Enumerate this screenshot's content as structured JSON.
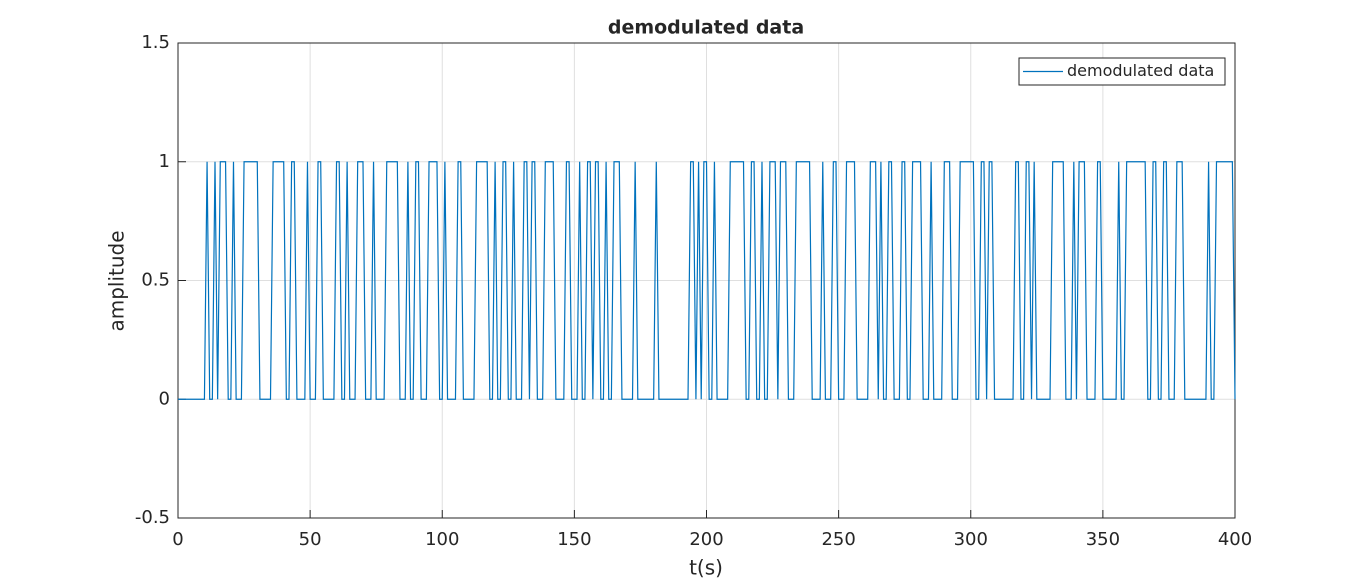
{
  "chart_data": {
    "type": "line",
    "title": "demodulated data",
    "xlabel": "t(s)",
    "ylabel": "amplitude",
    "x": [
      0,
      10,
      11,
      12,
      13,
      14,
      15,
      16,
      18,
      19,
      20,
      21,
      22,
      24,
      25,
      30,
      31,
      35,
      36,
      40,
      41,
      42,
      43,
      44,
      45,
      48,
      49,
      50,
      52,
      53,
      54,
      55,
      59,
      60,
      61,
      62,
      63,
      64,
      65,
      67,
      68,
      70,
      71,
      73,
      74,
      75,
      78,
      79,
      83,
      84,
      86,
      87,
      88,
      89,
      90,
      91,
      92,
      94,
      95,
      98,
      99,
      100,
      101,
      102,
      105,
      106,
      107,
      108,
      112,
      113,
      117,
      118,
      119,
      120,
      121,
      122,
      123,
      124,
      125,
      126,
      127,
      128,
      130,
      131,
      132,
      133,
      134,
      135,
      136,
      138,
      139,
      142,
      143,
      146,
      147,
      148,
      149,
      151,
      152,
      153,
      154,
      155,
      156,
      157,
      158,
      159,
      160,
      161,
      162,
      163,
      164,
      165,
      167,
      168,
      172,
      173,
      174,
      180,
      181,
      182,
      193,
      194,
      195,
      196,
      197,
      198,
      199,
      200,
      201,
      202,
      203,
      204,
      208,
      209,
      214,
      215,
      216,
      217,
      218,
      219,
      220,
      221,
      222,
      223,
      224,
      226,
      227,
      228,
      230,
      231,
      233,
      234,
      239,
      240,
      243,
      244,
      245,
      247,
      248,
      249,
      250,
      252,
      253,
      256,
      257,
      261,
      262,
      264,
      265,
      266,
      267,
      268,
      269,
      270,
      271,
      273,
      274,
      275,
      276,
      277,
      278,
      281,
      282,
      284,
      285,
      286,
      289,
      290,
      292,
      293,
      295,
      296,
      301,
      302,
      303,
      304,
      305,
      306,
      307,
      308,
      309,
      316,
      317,
      318,
      319,
      320,
      321,
      322,
      323,
      324,
      325,
      330,
      331,
      335,
      336,
      338,
      339,
      340,
      341,
      343,
      344,
      347,
      348,
      349,
      350,
      355,
      356,
      357,
      358,
      359,
      366,
      367,
      368,
      369,
      370,
      371,
      372,
      373,
      374,
      375,
      377,
      378,
      380,
      381,
      389,
      390,
      391,
      392,
      393,
      399,
      400
    ],
    "series": [
      {
        "name": "demodulated data",
        "color": "#0072bd",
        "values": [
          0,
          0,
          1,
          0,
          0,
          1,
          0,
          1,
          1,
          0,
          0,
          1,
          0,
          0,
          1,
          1,
          0,
          0,
          1,
          1,
          0,
          0,
          1,
          1,
          0,
          0,
          1,
          0,
          0,
          1,
          1,
          0,
          0,
          1,
          1,
          0,
          0,
          1,
          0,
          0,
          1,
          1,
          0,
          0,
          1,
          0,
          0,
          1,
          1,
          0,
          0,
          1,
          0,
          0,
          1,
          1,
          0,
          0,
          1,
          1,
          0,
          0,
          1,
          0,
          0,
          1,
          1,
          0,
          0,
          1,
          1,
          0,
          0,
          1,
          0,
          0,
          1,
          1,
          0,
          0,
          1,
          0,
          0,
          1,
          1,
          0,
          1,
          1,
          0,
          0,
          1,
          1,
          0,
          0,
          1,
          1,
          0,
          0,
          1,
          0,
          0,
          1,
          1,
          0,
          1,
          1,
          0,
          0,
          1,
          0,
          0,
          1,
          1,
          0,
          0,
          1,
          0,
          0,
          1,
          0,
          0,
          1,
          1,
          0,
          1,
          0,
          1,
          1,
          0,
          0,
          1,
          0,
          0,
          1,
          1,
          0,
          0,
          1,
          1,
          0,
          0,
          1,
          0,
          0,
          1,
          1,
          0,
          1,
          1,
          0,
          0,
          1,
          1,
          0,
          0,
          1,
          0,
          0,
          1,
          1,
          0,
          0,
          1,
          1,
          0,
          0,
          1,
          1,
          0,
          1,
          0,
          0,
          1,
          1,
          0,
          0,
          1,
          1,
          0,
          0,
          1,
          1,
          0,
          0,
          1,
          0,
          0,
          1,
          1,
          0,
          0,
          1,
          1,
          0,
          0,
          1,
          1,
          0,
          1,
          1,
          0,
          0,
          1,
          1,
          0,
          0,
          1,
          1,
          0,
          1,
          0,
          0,
          1,
          1,
          0,
          0,
          1,
          0,
          1,
          1,
          0,
          0,
          1,
          1,
          0,
          0,
          1,
          0,
          0,
          1,
          1,
          0,
          0,
          1,
          1,
          0,
          0,
          1,
          1,
          0,
          0,
          1,
          1,
          0,
          0,
          1,
          0,
          0,
          1,
          1,
          0
        ]
      }
    ],
    "xlim": [
      0,
      400
    ],
    "xticks": [
      0,
      50,
      100,
      150,
      200,
      250,
      300,
      350,
      400
    ],
    "ylim": [
      -0.5,
      1.5
    ],
    "yticks": [
      -0.5,
      0,
      0.5,
      1,
      1.5
    ],
    "grid": true,
    "legend": "upper right"
  }
}
